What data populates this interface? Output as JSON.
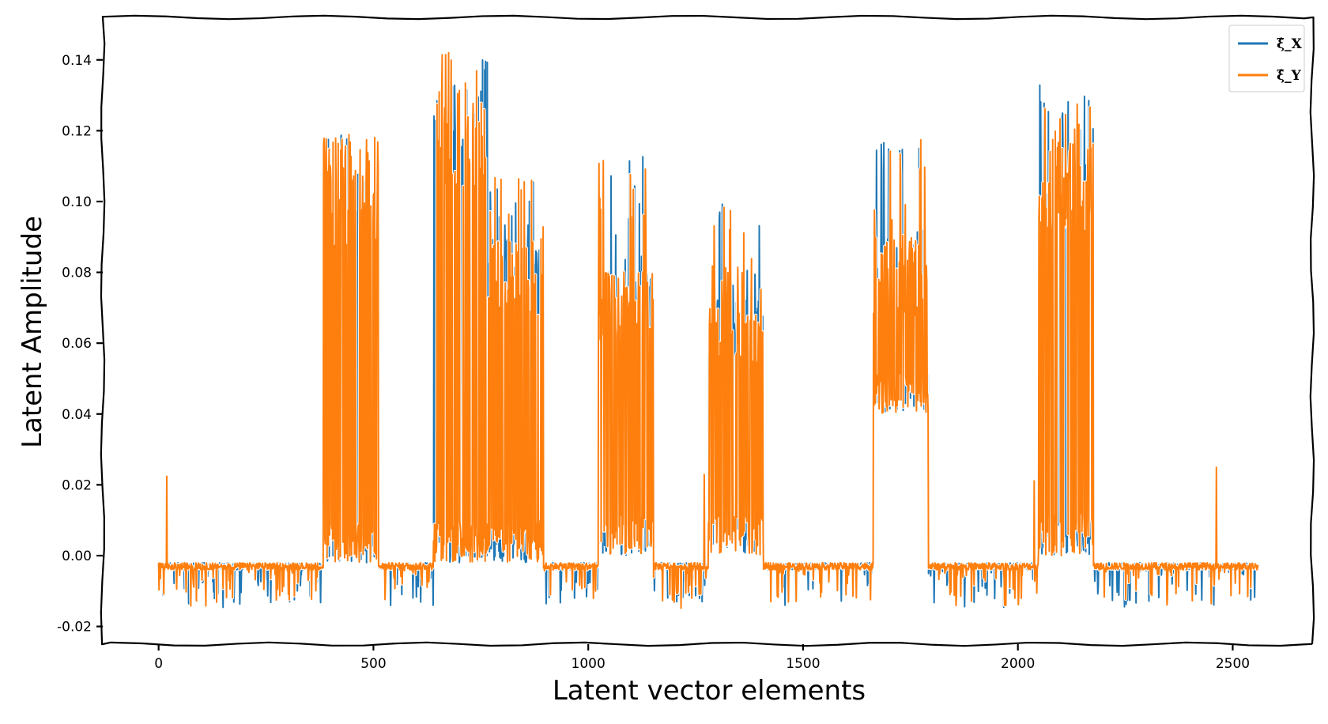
{
  "chart_data": {
    "type": "line",
    "xlabel": "Latent vector elements",
    "ylabel": "Latent Amplitude",
    "xlim": [
      -130,
      2685
    ],
    "ylim": [
      -0.025,
      0.152
    ],
    "x_ticks": [
      0,
      500,
      1000,
      1500,
      2000,
      2500
    ],
    "x_tick_labels": [
      "0",
      "500",
      "1000",
      "1500",
      "2000",
      "2500"
    ],
    "y_ticks": [
      -0.02,
      0.0,
      0.02,
      0.04,
      0.06,
      0.08,
      0.1,
      0.12,
      0.14
    ],
    "y_tick_labels": [
      "-0.02",
      "0.00",
      "0.02",
      "0.04",
      "0.06",
      "0.08",
      "0.10",
      "0.12",
      "0.14"
    ],
    "grid": false,
    "legend_position": "top-right",
    "x_range": [
      0,
      2560
    ],
    "baseline_value": -0.003,
    "active_blocks": [
      {
        "start": 384,
        "end": 512,
        "low": -0.002,
        "high": 0.112,
        "peak": 0.119
      },
      {
        "start": 640,
        "end": 768,
        "low": -0.002,
        "high": 0.133,
        "peak": 0.143
      },
      {
        "start": 768,
        "end": 896,
        "low": -0.002,
        "high": 0.09,
        "peak": 0.107
      },
      {
        "start": 1024,
        "end": 1152,
        "low": 0.0,
        "high": 0.08,
        "peak": 0.113
      },
      {
        "start": 1280,
        "end": 1408,
        "low": 0.0,
        "high": 0.072,
        "peak": 0.101
      },
      {
        "start": 1664,
        "end": 1792,
        "low": 0.04,
        "high": 0.09,
        "peak": 0.12
      },
      {
        "start": 2048,
        "end": 2176,
        "low": 0.0,
        "high": 0.122,
        "peak": 0.133
      }
    ],
    "series": [
      {
        "name": "ξ̂_X",
        "color": "#1f77b4"
      },
      {
        "name": "ξ̂_Y",
        "color": "#ff7f0e"
      }
    ]
  }
}
